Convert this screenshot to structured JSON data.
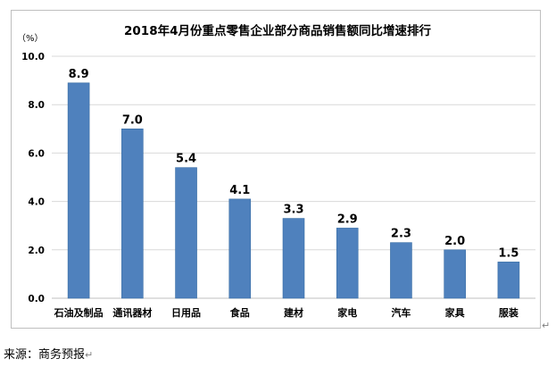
{
  "chart_data": {
    "type": "bar",
    "title": "2018年4月份重点零售企业部分商品销售额同比增速排行",
    "unit_label": "（%）",
    "categories": [
      "石油及制品",
      "通讯器材",
      "日用品",
      "食品",
      "建材",
      "家电",
      "汽车",
      "家具",
      "服装"
    ],
    "values": [
      8.9,
      7.0,
      5.4,
      4.1,
      3.3,
      2.9,
      2.3,
      2.0,
      1.5
    ],
    "value_labels": [
      "8.9",
      "7.0",
      "5.4",
      "4.1",
      "3.3",
      "2.9",
      "2.3",
      "2.0",
      "1.5"
    ],
    "ylim": [
      0,
      10
    ],
    "yticks": [
      "0.0",
      "2.0",
      "4.0",
      "6.0",
      "8.0",
      "10.0"
    ],
    "grid": true,
    "legend": "none",
    "bar_color": "#4f81bd"
  },
  "source": {
    "text": "来源：商务预报",
    "mark": "↵"
  },
  "para_mark": "↵"
}
